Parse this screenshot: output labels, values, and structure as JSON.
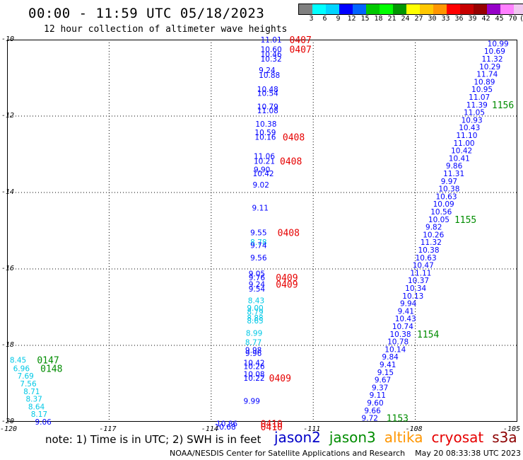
{
  "header": {
    "title": "00:00 - 11:59 UTC 05/18/2023",
    "subtitle": "12 hour collection of altimeter wave heights"
  },
  "colorbar": {
    "colors": [
      "#808080",
      "#00ffff",
      "#00d4ff",
      "#0000ff",
      "#0064ff",
      "#00c800",
      "#00ff00",
      "#009600",
      "#ffff00",
      "#ffc800",
      "#ff9600",
      "#ff0000",
      "#c80000",
      "#960000",
      "#9600c8",
      "#ff80ff",
      "#f0c8f0",
      "#000000"
    ],
    "labels": [
      "3",
      "6",
      "9",
      "12",
      "15",
      "18",
      "21",
      "24",
      "27",
      "30",
      "33",
      "36",
      "39",
      "42",
      "45",
      "70",
      "(ft)",
      ""
    ]
  },
  "map": {
    "lat_ticks": [
      "-10",
      "-12",
      "-14",
      "-16",
      "-18",
      "-20"
    ],
    "lon_ticks": [
      "-120",
      "-117",
      "-114",
      "-111",
      "-108",
      "-105"
    ]
  },
  "satellites": [
    {
      "name": "jason2",
      "color": "#0000c8"
    },
    {
      "name": "jason3",
      "color": "#008c00"
    },
    {
      "name": "altika",
      "color": "#ff9600"
    },
    {
      "name": "cryosat",
      "color": "#e60000"
    },
    {
      "name": "s3a",
      "color": "#8c0000"
    }
  ],
  "note": "note: 1) Time is in UTC; 2) SWH is in feet",
  "footer": "NOAA/NESDIS Center for Satellite Applications and Research    May 20 08:33:38 UTC 2023",
  "readings": [
    {
      "lat": -10.0,
      "lon": -112.55,
      "v": "11.01",
      "c": "#0000ff"
    },
    {
      "lat": -10.25,
      "lon": -112.55,
      "v": "10.60",
      "c": "#0000ff"
    },
    {
      "lat": -10.38,
      "lon": -112.55,
      "v": "10.46",
      "c": "#0000ff"
    },
    {
      "lat": -10.5,
      "lon": -112.55,
      "v": "10.32",
      "c": "#0000ff"
    },
    {
      "lat": -10.8,
      "lon": -112.6,
      "v": "9.24",
      "c": "#0000ff"
    },
    {
      "lat": -10.93,
      "lon": -112.6,
      "v": "10.88",
      "c": "#0000ff"
    },
    {
      "lat": -11.3,
      "lon": -112.65,
      "v": "10.48",
      "c": "#0000ff"
    },
    {
      "lat": -11.4,
      "lon": -112.65,
      "v": "10.54",
      "c": "#0000ff"
    },
    {
      "lat": -11.75,
      "lon": -112.65,
      "v": "10.79",
      "c": "#0000ff"
    },
    {
      "lat": -11.85,
      "lon": -112.65,
      "v": "11.08",
      "c": "#0000ff"
    },
    {
      "lat": -12.2,
      "lon": -112.7,
      "v": "10.38",
      "c": "#0000ff"
    },
    {
      "lat": -12.43,
      "lon": -112.72,
      "v": "10.59",
      "c": "#0000ff"
    },
    {
      "lat": -12.55,
      "lon": -112.72,
      "v": "10.16",
      "c": "#0000ff"
    },
    {
      "lat": -13.05,
      "lon": -112.75,
      "v": "11.06",
      "c": "#0000ff"
    },
    {
      "lat": -13.18,
      "lon": -112.75,
      "v": "10.21",
      "c": "#0000ff"
    },
    {
      "lat": -13.4,
      "lon": -112.75,
      "v": "9.90",
      "c": "#0000ff"
    },
    {
      "lat": -13.5,
      "lon": -112.78,
      "v": "10.42",
      "c": "#0000ff"
    },
    {
      "lat": -13.8,
      "lon": -112.78,
      "v": "9.02",
      "c": "#0000ff"
    },
    {
      "lat": -14.4,
      "lon": -112.8,
      "v": "9.11",
      "c": "#0000ff"
    },
    {
      "lat": -15.05,
      "lon": -112.85,
      "v": "9.55",
      "c": "#0000ff"
    },
    {
      "lat": -15.3,
      "lon": -112.85,
      "v": "8.78",
      "c": "#00c8e6"
    },
    {
      "lat": -15.38,
      "lon": -112.85,
      "v": "9.74",
      "c": "#0000ff"
    },
    {
      "lat": -15.7,
      "lon": -112.85,
      "v": "9.56",
      "c": "#0000ff"
    },
    {
      "lat": -16.12,
      "lon": -112.9,
      "v": "9.05",
      "c": "#0000ff"
    },
    {
      "lat": -16.22,
      "lon": -112.9,
      "v": "9.76",
      "c": "#0000ff"
    },
    {
      "lat": -16.4,
      "lon": -112.9,
      "v": "9.24",
      "c": "#0000ff"
    },
    {
      "lat": -16.52,
      "lon": -112.9,
      "v": "9.54",
      "c": "#0000ff"
    },
    {
      "lat": -16.82,
      "lon": -112.92,
      "v": "8.43",
      "c": "#00c8e6"
    },
    {
      "lat": -17.02,
      "lon": -112.95,
      "v": "9.00",
      "c": "#00c8e6"
    },
    {
      "lat": -17.12,
      "lon": -112.95,
      "v": "8.79",
      "c": "#00c8e6"
    },
    {
      "lat": -17.28,
      "lon": -112.95,
      "v": "8.88",
      "c": "#00c8e6"
    },
    {
      "lat": -17.35,
      "lon": -112.95,
      "v": "8.65",
      "c": "#00c8e6"
    },
    {
      "lat": -17.68,
      "lon": -112.98,
      "v": "8.99",
      "c": "#00c8e6"
    },
    {
      "lat": -17.92,
      "lon": -113.0,
      "v": "8.77",
      "c": "#00c8e6"
    },
    {
      "lat": -18.12,
      "lon": -113.0,
      "v": "9.98",
      "c": "#0000ff"
    },
    {
      "lat": -18.2,
      "lon": -113.0,
      "v": "9.96",
      "c": "#0000ff"
    },
    {
      "lat": -18.45,
      "lon": -113.05,
      "v": "10.42",
      "c": "#0000ff"
    },
    {
      "lat": -18.55,
      "lon": -113.05,
      "v": "10.26",
      "c": "#0000ff"
    },
    {
      "lat": -18.75,
      "lon": -113.05,
      "v": "10.08",
      "c": "#0000ff"
    },
    {
      "lat": -18.85,
      "lon": -113.05,
      "v": "10.22",
      "c": "#0000ff"
    },
    {
      "lat": -19.45,
      "lon": -113.05,
      "v": "9.99",
      "c": "#0000ff"
    },
    {
      "lat": -20.05,
      "lon": -113.85,
      "v": "10.86",
      "c": "#0000ff"
    },
    {
      "lat": -20.13,
      "lon": -113.9,
      "v": "10.68",
      "c": "#0000ff"
    },
    {
      "lat": -10.1,
      "lon": -105.88,
      "v": "10.99",
      "c": "#0000ff"
    },
    {
      "lat": -10.3,
      "lon": -105.98,
      "v": "10.69",
      "c": "#0000ff"
    },
    {
      "lat": -10.5,
      "lon": -106.05,
      "v": "11.32",
      "c": "#0000ff"
    },
    {
      "lat": -10.7,
      "lon": -106.12,
      "v": "10.29",
      "c": "#0000ff"
    },
    {
      "lat": -10.9,
      "lon": -106.2,
      "v": "11.74",
      "c": "#0000ff"
    },
    {
      "lat": -11.1,
      "lon": -106.28,
      "v": "10.89",
      "c": "#0000ff"
    },
    {
      "lat": -11.3,
      "lon": -106.35,
      "v": "10.95",
      "c": "#0000ff"
    },
    {
      "lat": -11.5,
      "lon": -106.43,
      "v": "11.07",
      "c": "#0000ff"
    },
    {
      "lat": -11.7,
      "lon": -106.5,
      "v": "11.39",
      "c": "#0000ff"
    },
    {
      "lat": -11.9,
      "lon": -106.58,
      "v": "11.05",
      "c": "#0000ff"
    },
    {
      "lat": -12.1,
      "lon": -106.65,
      "v": "10.93",
      "c": "#0000ff"
    },
    {
      "lat": -12.3,
      "lon": -106.72,
      "v": "10.43",
      "c": "#0000ff"
    },
    {
      "lat": -12.5,
      "lon": -106.8,
      "v": "11.10",
      "c": "#0000ff"
    },
    {
      "lat": -12.7,
      "lon": -106.88,
      "v": "11.00",
      "c": "#0000ff"
    },
    {
      "lat": -12.9,
      "lon": -106.95,
      "v": "10.42",
      "c": "#0000ff"
    },
    {
      "lat": -13.1,
      "lon": -107.02,
      "v": "10.41",
      "c": "#0000ff"
    },
    {
      "lat": -13.3,
      "lon": -107.1,
      "v": "9.86",
      "c": "#0000ff"
    },
    {
      "lat": -13.5,
      "lon": -107.18,
      "v": "11.31",
      "c": "#0000ff"
    },
    {
      "lat": -13.7,
      "lon": -107.25,
      "v": "9.97",
      "c": "#0000ff"
    },
    {
      "lat": -13.9,
      "lon": -107.32,
      "v": "10.38",
      "c": "#0000ff"
    },
    {
      "lat": -14.1,
      "lon": -107.4,
      "v": "10.63",
      "c": "#0000ff"
    },
    {
      "lat": -14.3,
      "lon": -107.48,
      "v": "10.09",
      "c": "#0000ff"
    },
    {
      "lat": -14.5,
      "lon": -107.55,
      "v": "10.56",
      "c": "#0000ff"
    },
    {
      "lat": -14.7,
      "lon": -107.62,
      "v": "10.05",
      "c": "#0000ff"
    },
    {
      "lat": -14.9,
      "lon": -107.7,
      "v": "9.82",
      "c": "#0000ff"
    },
    {
      "lat": -15.1,
      "lon": -107.78,
      "v": "10.26",
      "c": "#0000ff"
    },
    {
      "lat": -15.3,
      "lon": -107.85,
      "v": "11.32",
      "c": "#0000ff"
    },
    {
      "lat": -15.5,
      "lon": -107.92,
      "v": "10.38",
      "c": "#0000ff"
    },
    {
      "lat": -15.7,
      "lon": -108.0,
      "v": "10.63",
      "c": "#0000ff"
    },
    {
      "lat": -15.9,
      "lon": -108.08,
      "v": "10.47",
      "c": "#0000ff"
    },
    {
      "lat": -16.1,
      "lon": -108.15,
      "v": "11.11",
      "c": "#0000ff"
    },
    {
      "lat": -16.3,
      "lon": -108.22,
      "v": "10.37",
      "c": "#0000ff"
    },
    {
      "lat": -16.5,
      "lon": -108.3,
      "v": "10.34",
      "c": "#0000ff"
    },
    {
      "lat": -16.7,
      "lon": -108.38,
      "v": "10.13",
      "c": "#0000ff"
    },
    {
      "lat": -16.9,
      "lon": -108.45,
      "v": "9.94",
      "c": "#0000ff"
    },
    {
      "lat": -17.1,
      "lon": -108.52,
      "v": "9.41",
      "c": "#0000ff"
    },
    {
      "lat": -17.3,
      "lon": -108.6,
      "v": "10.43",
      "c": "#0000ff"
    },
    {
      "lat": -17.5,
      "lon": -108.68,
      "v": "10.74",
      "c": "#0000ff"
    },
    {
      "lat": -17.7,
      "lon": -108.75,
      "v": "10.38",
      "c": "#0000ff"
    },
    {
      "lat": -17.9,
      "lon": -108.82,
      "v": "10.78",
      "c": "#0000ff"
    },
    {
      "lat": -18.1,
      "lon": -108.9,
      "v": "10.14",
      "c": "#0000ff"
    },
    {
      "lat": -18.3,
      "lon": -108.98,
      "v": "9.84",
      "c": "#0000ff"
    },
    {
      "lat": -18.5,
      "lon": -109.05,
      "v": "9.41",
      "c": "#0000ff"
    },
    {
      "lat": -18.7,
      "lon": -109.12,
      "v": "9.15",
      "c": "#0000ff"
    },
    {
      "lat": -18.9,
      "lon": -109.2,
      "v": "9.67",
      "c": "#0000ff"
    },
    {
      "lat": -19.1,
      "lon": -109.28,
      "v": "9.37",
      "c": "#0000ff"
    },
    {
      "lat": -19.3,
      "lon": -109.35,
      "v": "9.11",
      "c": "#0000ff"
    },
    {
      "lat": -19.5,
      "lon": -109.42,
      "v": "9.60",
      "c": "#0000ff"
    },
    {
      "lat": -19.7,
      "lon": -109.5,
      "v": "9.66",
      "c": "#0000ff"
    },
    {
      "lat": -19.9,
      "lon": -109.58,
      "v": "9.72",
      "c": "#0000ff"
    },
    {
      "lat": -18.38,
      "lon": -119.92,
      "v": "8.45",
      "c": "#00c8e6"
    },
    {
      "lat": -18.6,
      "lon": -119.82,
      "v": "6.96",
      "c": "#00c8e6"
    },
    {
      "lat": -18.8,
      "lon": -119.7,
      "v": "7.69",
      "c": "#00c8e6"
    },
    {
      "lat": -19.0,
      "lon": -119.62,
      "v": "7.56",
      "c": "#00c8e6"
    },
    {
      "lat": -19.2,
      "lon": -119.52,
      "v": "8.71",
      "c": "#00c8e6"
    },
    {
      "lat": -19.4,
      "lon": -119.45,
      "v": "8.37",
      "c": "#00c8e6"
    },
    {
      "lat": -19.6,
      "lon": -119.38,
      "v": "8.64",
      "c": "#00c8e6"
    },
    {
      "lat": -19.8,
      "lon": -119.3,
      "v": "8.17",
      "c": "#00c8e6"
    },
    {
      "lat": -20.0,
      "lon": -119.18,
      "v": "9.06",
      "c": "#0000ff"
    }
  ],
  "time_labels": [
    {
      "lat": -10.0,
      "lon": -111.7,
      "v": "0407",
      "c": "#e60000"
    },
    {
      "lat": -10.25,
      "lon": -111.7,
      "v": "0407",
      "c": "#e60000"
    },
    {
      "lat": -12.55,
      "lon": -111.9,
      "v": "0408",
      "c": "#e60000"
    },
    {
      "lat": -13.18,
      "lon": -111.98,
      "v": "0408",
      "c": "#e60000"
    },
    {
      "lat": -15.05,
      "lon": -112.05,
      "v": "0408",
      "c": "#e60000"
    },
    {
      "lat": -16.22,
      "lon": -112.1,
      "v": "0409",
      "c": "#e60000"
    },
    {
      "lat": -16.4,
      "lon": -112.1,
      "v": "0409",
      "c": "#e60000"
    },
    {
      "lat": -18.85,
      "lon": -112.3,
      "v": "0409",
      "c": "#e60000"
    },
    {
      "lat": -20.05,
      "lon": -112.55,
      "v": "0410",
      "c": "#e60000"
    },
    {
      "lat": -20.13,
      "lon": -112.55,
      "v": "0410",
      "c": "#e60000"
    },
    {
      "lat": -11.7,
      "lon": -105.75,
      "v": "1156",
      "c": "#008c00"
    },
    {
      "lat": -14.7,
      "lon": -106.85,
      "v": "1155",
      "c": "#008c00"
    },
    {
      "lat": -17.7,
      "lon": -107.95,
      "v": "1154",
      "c": "#008c00"
    },
    {
      "lat": -19.9,
      "lon": -108.85,
      "v": "1153",
      "c": "#008c00"
    },
    {
      "lat": -18.38,
      "lon": -119.12,
      "v": "0147",
      "c": "#008c00"
    },
    {
      "lat": -18.6,
      "lon": -119.02,
      "v": "0148",
      "c": "#008c00"
    }
  ]
}
